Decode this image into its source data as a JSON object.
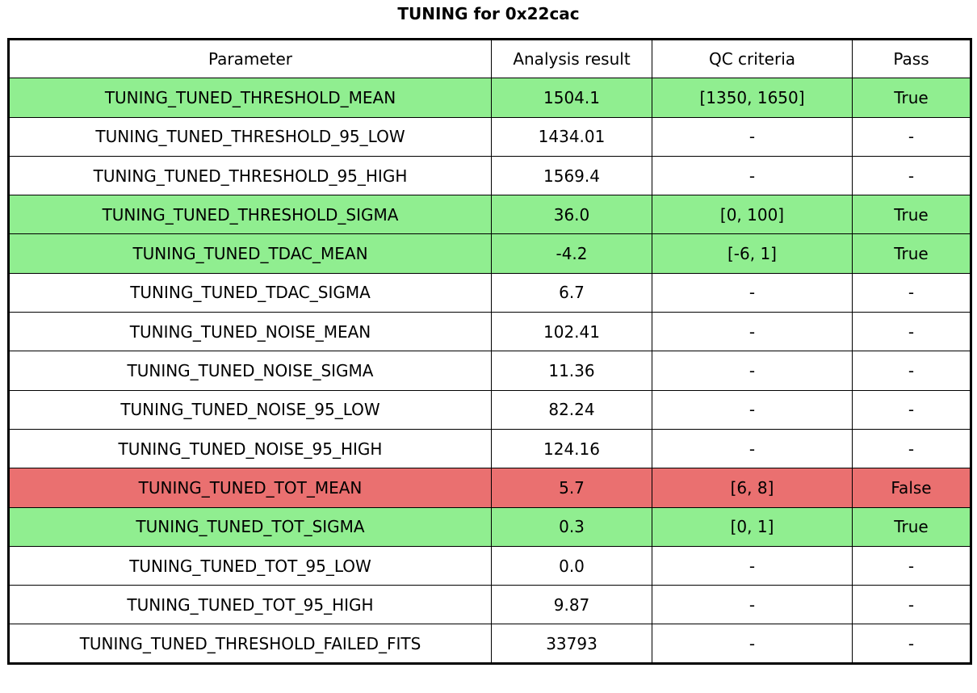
{
  "colors": {
    "pass_row_bg": "#90ee90",
    "fail_row_bg": "#ea7070",
    "default_row_bg": "#ffffff",
    "border": "#000000",
    "text": "#000000"
  },
  "chart_data": {
    "type": "table",
    "title": "TUNING for 0x22cac",
    "columns": [
      "Parameter",
      "Analysis result",
      "QC criteria",
      "Pass"
    ],
    "rows": [
      {
        "parameter": "TUNING_TUNED_THRESHOLD_MEAN",
        "analysis_result": "1504.1",
        "qc_criteria": "[1350, 1650]",
        "pass": "True",
        "status": "pass"
      },
      {
        "parameter": "TUNING_TUNED_THRESHOLD_95_LOW",
        "analysis_result": "1434.01",
        "qc_criteria": "-",
        "pass": "-",
        "status": "default"
      },
      {
        "parameter": "TUNING_TUNED_THRESHOLD_95_HIGH",
        "analysis_result": "1569.4",
        "qc_criteria": "-",
        "pass": "-",
        "status": "default"
      },
      {
        "parameter": "TUNING_TUNED_THRESHOLD_SIGMA",
        "analysis_result": "36.0",
        "qc_criteria": "[0, 100]",
        "pass": "True",
        "status": "pass"
      },
      {
        "parameter": "TUNING_TUNED_TDAC_MEAN",
        "analysis_result": "-4.2",
        "qc_criteria": "[-6, 1]",
        "pass": "True",
        "status": "pass"
      },
      {
        "parameter": "TUNING_TUNED_TDAC_SIGMA",
        "analysis_result": "6.7",
        "qc_criteria": "-",
        "pass": "-",
        "status": "default"
      },
      {
        "parameter": "TUNING_TUNED_NOISE_MEAN",
        "analysis_result": "102.41",
        "qc_criteria": "-",
        "pass": "-",
        "status": "default"
      },
      {
        "parameter": "TUNING_TUNED_NOISE_SIGMA",
        "analysis_result": "11.36",
        "qc_criteria": "-",
        "pass": "-",
        "status": "default"
      },
      {
        "parameter": "TUNING_TUNED_NOISE_95_LOW",
        "analysis_result": "82.24",
        "qc_criteria": "-",
        "pass": "-",
        "status": "default"
      },
      {
        "parameter": "TUNING_TUNED_NOISE_95_HIGH",
        "analysis_result": "124.16",
        "qc_criteria": "-",
        "pass": "-",
        "status": "default"
      },
      {
        "parameter": "TUNING_TUNED_TOT_MEAN",
        "analysis_result": "5.7",
        "qc_criteria": "[6, 8]",
        "pass": "False",
        "status": "fail"
      },
      {
        "parameter": "TUNING_TUNED_TOT_SIGMA",
        "analysis_result": "0.3",
        "qc_criteria": "[0, 1]",
        "pass": "True",
        "status": "pass"
      },
      {
        "parameter": "TUNING_TUNED_TOT_95_LOW",
        "analysis_result": "0.0",
        "qc_criteria": "-",
        "pass": "-",
        "status": "default"
      },
      {
        "parameter": "TUNING_TUNED_TOT_95_HIGH",
        "analysis_result": "9.87",
        "qc_criteria": "-",
        "pass": "-",
        "status": "default"
      },
      {
        "parameter": "TUNING_TUNED_THRESHOLD_FAILED_FITS",
        "analysis_result": "33793",
        "qc_criteria": "-",
        "pass": "-",
        "status": "default"
      }
    ]
  }
}
